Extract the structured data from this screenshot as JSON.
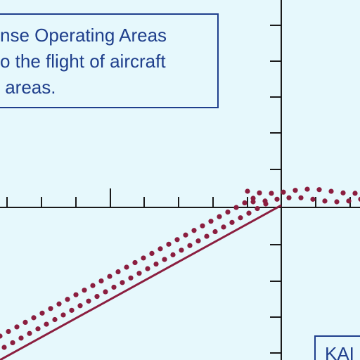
{
  "map": {
    "note_lines": [
      "nse Operating Areas",
      "o the flight of aircraft",
      " areas."
    ],
    "corner_label": "KAI",
    "colors": {
      "background": "#e6f8fc",
      "text": "#1f3f8c",
      "grid_line": "#1a1a1a",
      "boundary_line": "#8b1e3f",
      "boundary_dots": "#8b1e3f"
    }
  }
}
